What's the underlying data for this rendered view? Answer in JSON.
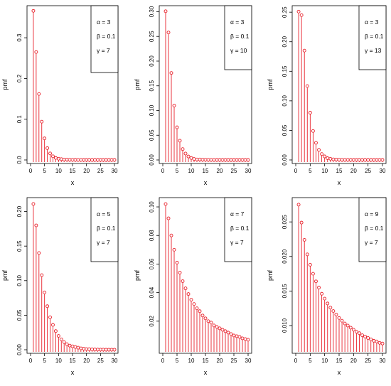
{
  "chart_data": [
    {
      "type": "stem",
      "xlabel": "x",
      "ylabel": "pmf",
      "xlim": [
        0,
        30
      ],
      "ylim": [
        0,
        0.37
      ],
      "x_ticks": [
        0,
        5,
        10,
        15,
        20,
        25,
        30
      ],
      "y_ticks": [
        0.0,
        0.1,
        0.2,
        0.3
      ],
      "y_tick_labels": [
        "0.0",
        "0.1",
        "0.2",
        "0.3"
      ],
      "legend": [
        "α = 3",
        "β = 0.1",
        "γ = 7"
      ],
      "legend_position": "top-right",
      "color": "#e8202a",
      "x": [
        1,
        2,
        3,
        4,
        5,
        6,
        7,
        8,
        9,
        10,
        11,
        12,
        13,
        14,
        15,
        16,
        17,
        18,
        19,
        20,
        21,
        22,
        23,
        24,
        25,
        26,
        27,
        28,
        29,
        30
      ],
      "values": [
        0.366,
        0.265,
        0.162,
        0.094,
        0.053,
        0.029,
        0.016,
        0.009,
        0.005,
        0.003,
        0.002,
        0.001,
        0.001,
        0.0005,
        0.0003,
        0.0002,
        0.0001,
        0.0001,
        0,
        0,
        0,
        0,
        0,
        0,
        0,
        0,
        0,
        0,
        0,
        0
      ]
    },
    {
      "type": "stem",
      "xlabel": "x",
      "ylabel": "pmf",
      "xlim": [
        0,
        30
      ],
      "ylim": [
        0,
        0.305
      ],
      "x_ticks": [
        0,
        5,
        10,
        15,
        20,
        25,
        30
      ],
      "y_ticks": [
        0.0,
        0.05,
        0.1,
        0.15,
        0.2,
        0.25,
        0.3
      ],
      "y_tick_labels": [
        "0.00",
        "0.05",
        "0.10",
        "0.15",
        "0.20",
        "0.25",
        "0.30"
      ],
      "legend": [
        "α = 3",
        "β = 0.1",
        "γ = 10"
      ],
      "legend_position": "top-right",
      "color": "#e8202a",
      "x": [
        1,
        2,
        3,
        4,
        5,
        6,
        7,
        8,
        9,
        10,
        11,
        12,
        13,
        14,
        15,
        16,
        17,
        18,
        19,
        20,
        21,
        22,
        23,
        24,
        25,
        26,
        27,
        28,
        29,
        30
      ],
      "values": [
        0.301,
        0.258,
        0.176,
        0.11,
        0.066,
        0.039,
        0.022,
        0.013,
        0.007,
        0.004,
        0.002,
        0.001,
        0.001,
        0.0005,
        0.0003,
        0.0002,
        0.0001,
        0.0001,
        0,
        0,
        0,
        0,
        0,
        0,
        0,
        0,
        0,
        0,
        0,
        0
      ]
    },
    {
      "type": "stem",
      "xlabel": "x",
      "ylabel": "pmf",
      "xlim": [
        0,
        30
      ],
      "ylim": [
        0,
        0.255
      ],
      "x_ticks": [
        0,
        5,
        10,
        15,
        20,
        25,
        30
      ],
      "y_ticks": [
        0.0,
        0.05,
        0.1,
        0.15,
        0.2,
        0.25
      ],
      "y_tick_labels": [
        "0.00",
        "0.05",
        "0.10",
        "0.15",
        "0.20",
        "0.25"
      ],
      "legend": [
        "α = 3",
        "β = 0.1",
        "γ = 13"
      ],
      "legend_position": "top-right",
      "color": "#e8202a",
      "x": [
        1,
        2,
        3,
        4,
        5,
        6,
        7,
        8,
        9,
        10,
        11,
        12,
        13,
        14,
        15,
        16,
        17,
        18,
        19,
        20,
        21,
        22,
        23,
        24,
        25,
        26,
        27,
        28,
        29,
        30
      ],
      "values": [
        0.251,
        0.245,
        0.185,
        0.125,
        0.08,
        0.049,
        0.029,
        0.017,
        0.01,
        0.006,
        0.003,
        0.002,
        0.001,
        0.0007,
        0.0004,
        0.0002,
        0.0001,
        0.0001,
        0,
        0,
        0,
        0,
        0,
        0,
        0,
        0,
        0,
        0,
        0,
        0
      ]
    },
    {
      "type": "stem",
      "xlabel": "x",
      "ylabel": "pmf",
      "xlim": [
        0,
        30
      ],
      "ylim": [
        0,
        0.215
      ],
      "x_ticks": [
        0,
        5,
        10,
        15,
        20,
        25,
        30
      ],
      "y_ticks": [
        0.0,
        0.05,
        0.1,
        0.15,
        0.2
      ],
      "y_tick_labels": [
        "0.00",
        "0.05",
        "0.10",
        "0.15",
        "0.20"
      ],
      "legend": [
        "α = 5",
        "β = 0.1",
        "γ = 7"
      ],
      "legend_position": "top-right",
      "color": "#e8202a",
      "x": [
        1,
        2,
        3,
        4,
        5,
        6,
        7,
        8,
        9,
        10,
        11,
        12,
        13,
        14,
        15,
        16,
        17,
        18,
        19,
        20,
        21,
        22,
        23,
        24,
        25,
        26,
        27,
        28,
        29,
        30
      ],
      "values": [
        0.211,
        0.18,
        0.14,
        0.108,
        0.083,
        0.063,
        0.047,
        0.036,
        0.027,
        0.02,
        0.015,
        0.011,
        0.008,
        0.006,
        0.005,
        0.004,
        0.003,
        0.002,
        0.0015,
        0.001,
        0.0008,
        0.0006,
        0.0004,
        0.0003,
        0.0002,
        0.0002,
        0.0001,
        0.0001,
        0.0001,
        0.0001
      ]
    },
    {
      "type": "stem",
      "xlabel": "x",
      "ylabel": "pmf",
      "xlim": [
        0,
        30
      ],
      "ylim": [
        0.0,
        0.104
      ],
      "x_ticks": [
        0,
        5,
        10,
        15,
        20,
        25,
        30
      ],
      "y_ticks": [
        0.02,
        0.04,
        0.06,
        0.08,
        0.1
      ],
      "y_tick_labels": [
        "0.02",
        "0.04",
        "0.06",
        "0.08",
        "0.10"
      ],
      "legend": [
        "α = 7",
        "β = 0.1",
        "γ = 7"
      ],
      "legend_position": "top-right",
      "color": "#e8202a",
      "x": [
        1,
        2,
        3,
        4,
        5,
        6,
        7,
        8,
        9,
        10,
        11,
        12,
        13,
        14,
        15,
        16,
        17,
        18,
        19,
        20,
        21,
        22,
        23,
        24,
        25,
        26,
        27,
        28,
        29,
        30
      ],
      "values": [
        0.102,
        0.092,
        0.08,
        0.07,
        0.061,
        0.054,
        0.048,
        0.043,
        0.039,
        0.035,
        0.032,
        0.029,
        0.027,
        0.024,
        0.022,
        0.02,
        0.019,
        0.017,
        0.016,
        0.015,
        0.014,
        0.013,
        0.012,
        0.011,
        0.01,
        0.0095,
        0.009,
        0.008,
        0.0075,
        0.007
      ]
    },
    {
      "type": "stem",
      "xlabel": "x",
      "ylabel": "pmf",
      "xlim": [
        0,
        30
      ],
      "ylim": [
        0.0065,
        0.028
      ],
      "x_ticks": [
        0,
        5,
        10,
        15,
        20,
        25,
        30
      ],
      "y_ticks": [
        0.01,
        0.015,
        0.02,
        0.025
      ],
      "y_tick_labels": [
        "0.010",
        "0.015",
        "0.020",
        "0.025"
      ],
      "legend": [
        "α = 9",
        "β = 0.1",
        "γ = 7"
      ],
      "legend_position": "top-right",
      "color": "#e8202a",
      "x": [
        1,
        2,
        3,
        4,
        5,
        6,
        7,
        8,
        9,
        10,
        11,
        12,
        13,
        14,
        15,
        16,
        17,
        18,
        19,
        20,
        21,
        22,
        23,
        24,
        25,
        26,
        27,
        28,
        29,
        30
      ],
      "values": [
        0.0275,
        0.0249,
        0.0224,
        0.0203,
        0.0188,
        0.0175,
        0.0164,
        0.0155,
        0.0146,
        0.0139,
        0.0132,
        0.0126,
        0.0121,
        0.0116,
        0.0111,
        0.0107,
        0.0103,
        0.01,
        0.0097,
        0.0094,
        0.0091,
        0.0089,
        0.0086,
        0.0084,
        0.0082,
        0.008,
        0.0078,
        0.0077,
        0.0075,
        0.0074
      ]
    }
  ]
}
